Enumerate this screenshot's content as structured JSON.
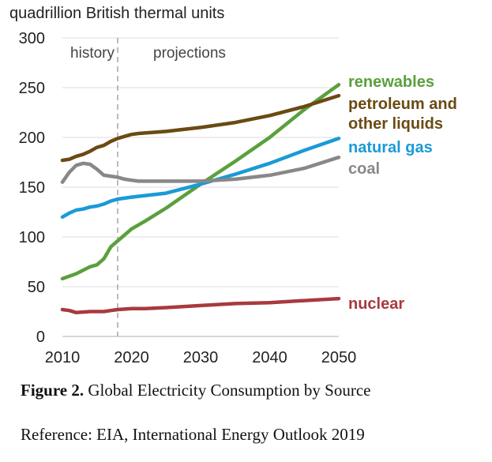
{
  "chart_data": {
    "type": "line",
    "title": "",
    "ylabel": "quadrillion British thermal units",
    "xlabel": "",
    "xlim": [
      2010,
      2050
    ],
    "ylim": [
      0,
      300
    ],
    "x_ticks": [
      2010,
      2020,
      2030,
      2040,
      2050
    ],
    "y_ticks": [
      0,
      50,
      100,
      150,
      200,
      250,
      300
    ],
    "divider": {
      "x": 2018,
      "left_label": "history",
      "right_label": "projections"
    },
    "grid": "horizontal",
    "series": [
      {
        "name": "renewables",
        "label_lines": [
          "renewables"
        ],
        "color": "#5aa03c",
        "x": [
          2010,
          2012,
          2014,
          2015,
          2016,
          2017,
          2018,
          2019,
          2020,
          2022,
          2025,
          2030,
          2035,
          2040,
          2045,
          2050
        ],
        "values": [
          58,
          63,
          70,
          72,
          78,
          90,
          96,
          102,
          108,
          116,
          129,
          153,
          176,
          200,
          228,
          253
        ]
      },
      {
        "name": "petroleum and other liquids",
        "label_lines": [
          "petroleum and",
          "other liquids"
        ],
        "color": "#6b4a12",
        "x": [
          2010,
          2011,
          2012,
          2013,
          2014,
          2015,
          2016,
          2017,
          2018,
          2019,
          2020,
          2021,
          2025,
          2030,
          2035,
          2040,
          2045,
          2050
        ],
        "values": [
          177,
          178,
          181,
          183,
          186,
          190,
          192,
          196,
          199,
          201,
          203,
          204,
          206,
          210,
          215,
          222,
          231,
          242
        ]
      },
      {
        "name": "natural gas",
        "label_lines": [
          "natural gas"
        ],
        "color": "#1a9ad6",
        "x": [
          2010,
          2011,
          2012,
          2013,
          2014,
          2015,
          2016,
          2017,
          2018,
          2020,
          2025,
          2030,
          2035,
          2040,
          2045,
          2050
        ],
        "values": [
          120,
          124,
          127,
          128,
          130,
          131,
          133,
          136,
          138,
          140,
          144,
          153,
          163,
          174,
          187,
          199
        ]
      },
      {
        "name": "coal",
        "label_lines": [
          "coal"
        ],
        "color": "#888888",
        "x": [
          2010,
          2011,
          2012,
          2013,
          2014,
          2015,
          2016,
          2017,
          2018,
          2019,
          2020,
          2021,
          2025,
          2030,
          2035,
          2040,
          2045,
          2050
        ],
        "values": [
          155,
          165,
          172,
          174,
          173,
          168,
          162,
          161,
          160,
          158,
          157,
          156,
          156,
          156,
          158,
          162,
          169,
          180
        ]
      },
      {
        "name": "nuclear",
        "label_lines": [
          "nuclear"
        ],
        "color": "#a83a3e",
        "x": [
          2010,
          2011,
          2012,
          2014,
          2016,
          2017,
          2018,
          2020,
          2022,
          2025,
          2030,
          2035,
          2040,
          2045,
          2050
        ],
        "values": [
          27,
          26,
          24,
          25,
          25,
          26,
          27,
          28,
          28,
          29,
          31,
          33,
          34,
          36,
          38
        ]
      }
    ]
  },
  "caption": {
    "figure_label": "Figure 2.",
    "figure_text": " Global Electricity Consumption by Source",
    "reference": "Reference: EIA, International Energy Outlook 2019"
  }
}
